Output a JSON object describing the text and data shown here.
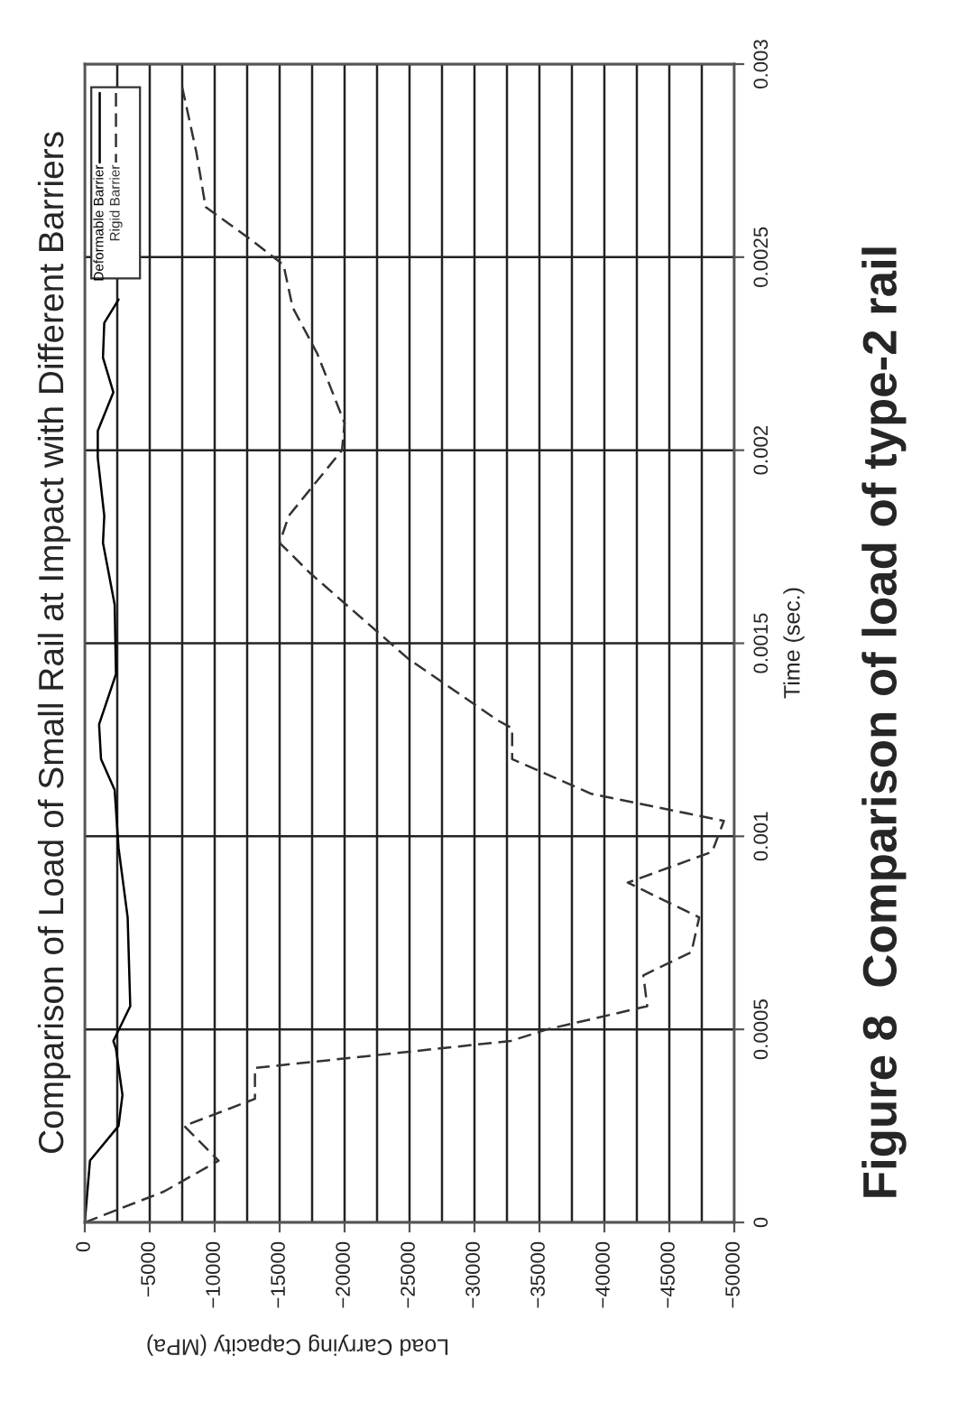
{
  "chart_data": {
    "type": "line",
    "title": "Comparison of Load of Small Rail at Impact with Different Barriers",
    "xlabel": "Load Carrying Capacity (MPa)",
    "ylabel": "Time (sec.)",
    "annotations": [
      "Figure 8  Comparison of load of type-2 rail"
    ],
    "ylim": [
      0,
      0.003
    ],
    "yticks": [
      0,
      0.0005,
      0.001,
      0.0015,
      0.002,
      0.0025,
      0.003
    ],
    "xlim": [
      0,
      -50000
    ],
    "xticks": [
      0,
      {
        "value": -2500,
        "label": null
      },
      {
        "value": -5000,
        "label": "−5000"
      },
      {
        "value": -7500,
        "label": null
      },
      {
        "value": -10000,
        "label": "−10000"
      },
      {
        "value": -12500,
        "label": null
      },
      {
        "value": -15000,
        "label": "−15000"
      },
      {
        "value": -17500,
        "label": null
      },
      {
        "value": -20000,
        "label": "−20000"
      },
      {
        "value": -22500,
        "label": null
      },
      {
        "value": -25000,
        "label": "−25000"
      },
      {
        "value": -27500,
        "label": null
      },
      {
        "value": -30000,
        "label": "−30000"
      },
      {
        "value": -32500,
        "label": null
      },
      {
        "value": -35000,
        "label": "−35000"
      },
      {
        "value": -37500,
        "label": null
      },
      {
        "value": -40000,
        "label": "−40000"
      },
      {
        "value": -42500,
        "label": null
      },
      {
        "value": -45000,
        "label": "−45000"
      },
      {
        "value": -47500,
        "label": null
      },
      {
        "value": -50000,
        "label": "−50000"
      }
    ],
    "grid": true,
    "legend": "top left",
    "series": [
      {
        "name": "Deformable Barrier",
        "color": "#000000",
        "line_style": "solid",
        "values": [
          0,
          0.00016,
          0.00025,
          0.00033,
          0.00045,
          0.00047,
          0.00056,
          0.00079,
          0.00097,
          0.00112,
          0.0012,
          0.00129,
          0.00142,
          0.0016,
          0.00176,
          0.00183,
          0.00198,
          0.00205,
          0.00215,
          0.00224,
          0.00233,
          0.00239
        ],
        "x": [
          0,
          -400,
          -2600,
          -2900,
          -2400,
          -2200,
          -3500,
          -3300,
          -2600,
          -2300,
          -1250,
          -1100,
          -2400,
          -2300,
          -1400,
          -1500,
          -1000,
          -1000,
          -2200,
          -1400,
          -1500,
          -2600
        ]
      },
      {
        "name": "Rigid Barrier",
        "color": "#333333",
        "line_style": "dashed",
        "values": [
          0,
          8e-05,
          0.00016,
          0.00025,
          0.00032,
          0.0004,
          0.00047,
          0.0005,
          0.00056,
          0.00064,
          0.0007,
          0.00079,
          0.00088,
          0.00096,
          0.00104,
          0.00111,
          0.0012,
          0.00128,
          0.0013,
          0.00146,
          0.00168,
          0.00176,
          0.00183,
          0.002,
          0.00207,
          0.00225,
          0.00237,
          0.00248,
          0.00255,
          0.00263,
          0.00277,
          0.00294
        ],
        "x": [
          0,
          -6100,
          -10300,
          -7650,
          -13100,
          -13100,
          -32800,
          -35600,
          -43300,
          -43000,
          -46700,
          -47300,
          -41800,
          -48300,
          -49200,
          -39000,
          -32900,
          -32900,
          -31800,
          -24900,
          -17400,
          -15000,
          -15700,
          -19800,
          -20000,
          -17900,
          -16000,
          -15300,
          -12600,
          -9300,
          -8600,
          -7500
        ]
      }
    ]
  }
}
